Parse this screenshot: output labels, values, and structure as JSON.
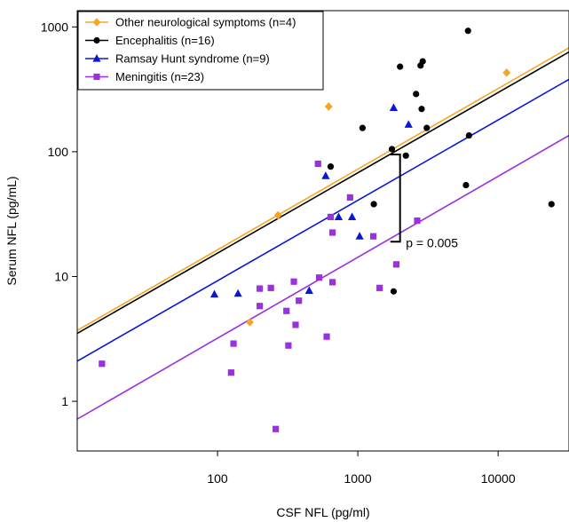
{
  "chart_data": {
    "type": "scatter",
    "title": "",
    "xlabel": "CSF NFL (pg/ml)",
    "ylabel": "Serum NFL (pg/mL)",
    "xscale": "log",
    "yscale": "log",
    "xlim": [
      10,
      32000
    ],
    "ylim": [
      0.4,
      1350
    ],
    "xticks": [
      100,
      1000,
      10000
    ],
    "xtick_labels": [
      "100",
      "1000",
      "10000"
    ],
    "yticks": [
      1,
      10,
      100,
      1000
    ],
    "ytick_labels": [
      "1",
      "10",
      "100",
      "1000"
    ],
    "grid": false,
    "legend_position": "top-left",
    "series": [
      {
        "name": "Other neurological symptoms (n=4)",
        "color": "#f5a623",
        "marker": "diamond",
        "points": [
          [
            270,
            31
          ],
          [
            170,
            4.3
          ],
          [
            620,
            230
          ],
          [
            11500,
            430
          ]
        ],
        "fit": [
          [
            10,
            3.7
          ],
          [
            32000,
            680
          ]
        ]
      },
      {
        "name": "Encephalitis (n=16)",
        "color": "#000000",
        "marker": "circle",
        "points": [
          [
            640,
            76
          ],
          [
            1080,
            155
          ],
          [
            1300,
            38
          ],
          [
            1750,
            105
          ],
          [
            1800,
            7.6
          ],
          [
            2000,
            480
          ],
          [
            2200,
            93
          ],
          [
            2600,
            290
          ],
          [
            2800,
            490
          ],
          [
            2850,
            220
          ],
          [
            2900,
            530
          ],
          [
            3100,
            155
          ],
          [
            5900,
            54
          ],
          [
            6100,
            930
          ],
          [
            6200,
            135
          ],
          [
            24000,
            38
          ]
        ],
        "fit": [
          [
            10,
            3.5
          ],
          [
            32000,
            630
          ]
        ]
      },
      {
        "name": "Ramsay Hunt syndrome (n=9)",
        "color": "#0a18d6",
        "marker": "triangle",
        "points": [
          [
            95,
            7.2
          ],
          [
            140,
            7.3
          ],
          [
            450,
            7.7
          ],
          [
            590,
            64
          ],
          [
            730,
            30
          ],
          [
            910,
            30
          ],
          [
            1030,
            21
          ],
          [
            1800,
            225
          ],
          [
            2300,
            165
          ]
        ],
        "fit": [
          [
            10,
            2.1
          ],
          [
            32000,
            380
          ]
        ]
      },
      {
        "name": "Meningitis (n=23)",
        "color": "#9b30e0",
        "marker": "square",
        "points": [
          [
            15,
            2.0
          ],
          [
            125,
            1.7
          ],
          [
            130,
            2.9
          ],
          [
            200,
            5.8
          ],
          [
            200,
            8.0
          ],
          [
            240,
            8.1
          ],
          [
            260,
            0.6
          ],
          [
            310,
            5.3
          ],
          [
            320,
            2.8
          ],
          [
            350,
            9.1
          ],
          [
            360,
            4.1
          ],
          [
            380,
            6.4
          ],
          [
            520,
            80
          ],
          [
            530,
            9.8
          ],
          [
            600,
            3.3
          ],
          [
            640,
            30
          ],
          [
            660,
            9.0
          ],
          [
            660,
            22.5
          ],
          [
            880,
            43
          ],
          [
            1290,
            21
          ],
          [
            1430,
            8.1
          ],
          [
            1880,
            12.5
          ],
          [
            2650,
            28
          ]
        ],
        "fit": [
          [
            10,
            0.72
          ],
          [
            32000,
            135
          ]
        ]
      }
    ],
    "annotations": [
      {
        "text": "p = 0.005",
        "x": 2200,
        "y": 19
      }
    ],
    "bracket": {
      "x": 2000,
      "y_low": 19,
      "y_high": 95
    }
  }
}
